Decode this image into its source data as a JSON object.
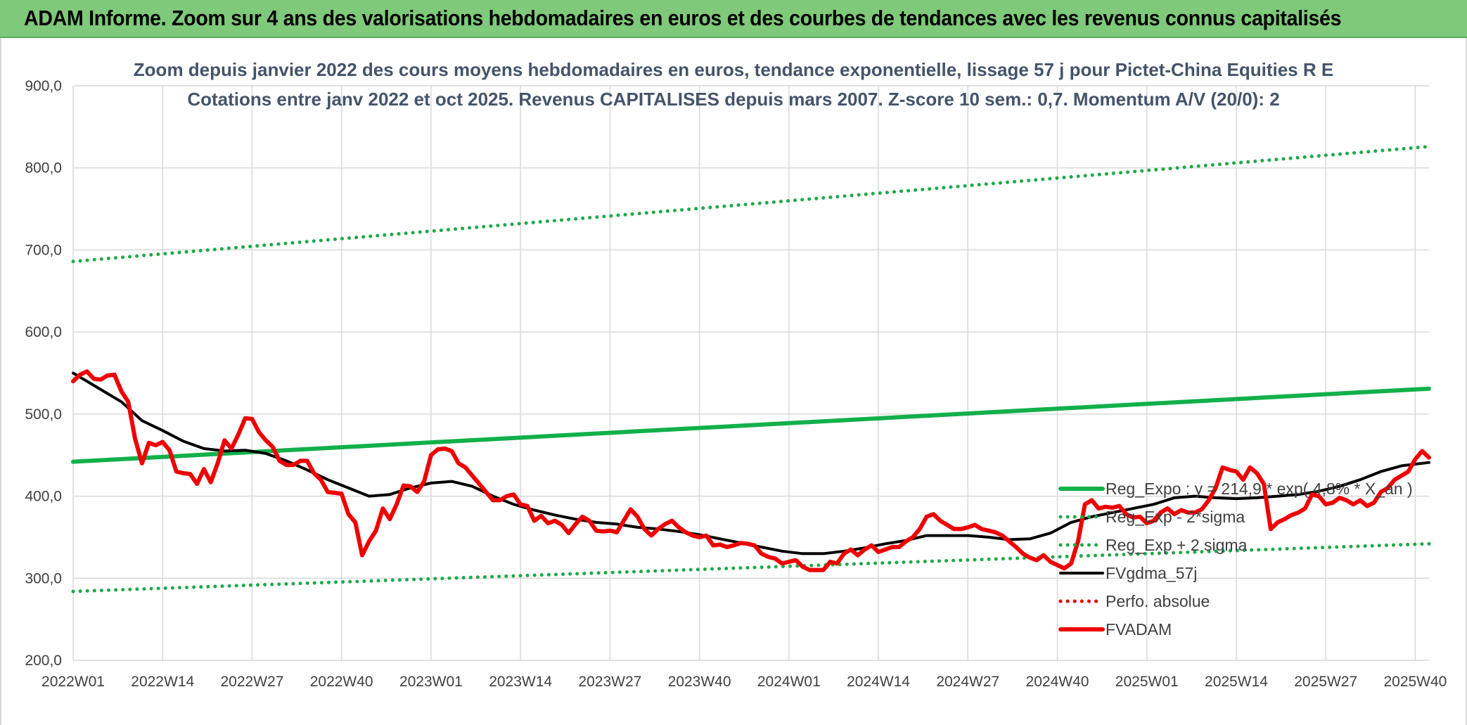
{
  "banner": {
    "title": "ADAM Informe. Zoom sur 4 ans des valorisations hebdomadaires en euros et des courbes de tendances avec les revenus connus capitalisés"
  },
  "colors": {
    "banner_bg": "#7fc97a",
    "grid": "#d9d9d9",
    "axis_text": "#404040",
    "title_text": "#44546a",
    "reg_exp": "#12b04a",
    "sigma": "#22a84a",
    "gdma": "#000000",
    "perfo": "#e00000",
    "fvadam": "#ee0000"
  },
  "chart_data": {
    "type": "line",
    "title_lines": [
      "Zoom depuis janvier 2022 des cours moyens hebdomadaires en euros, tendance exponentielle, lissage 57 j pour Pictet-China Equities R E",
      "Cotations entre janv 2022 et oct 2025. Revenus CAPITALISES depuis mars 2007. Z-score 10 sem.: 0,7. Momentum A/V (20/0): 2"
    ],
    "y_axis": {
      "min": 200,
      "max": 900,
      "step": 100,
      "tick_labels": [
        "200,0",
        "300,0",
        "400,0",
        "500,0",
        "600,0",
        "700,0",
        "800,0",
        "900,0"
      ]
    },
    "x_axis": {
      "week_count": 198,
      "tick_labels": [
        "2022W01",
        "2022W14",
        "2022W27",
        "2022W40",
        "2023W01",
        "2023W14",
        "2023W27",
        "2023W40",
        "2024W01",
        "2024W14",
        "2024W27",
        "2024W40",
        "2025W01",
        "2025W14",
        "2025W27",
        "2025W40"
      ],
      "tick_positions": [
        1,
        14,
        27,
        40,
        53,
        66,
        79,
        92,
        105,
        118,
        131,
        144,
        157,
        170,
        183,
        196
      ]
    },
    "grid": true,
    "legend_position": "right",
    "series": [
      {
        "name": "Reg_Expo : y = 214,9 * exp( 4,8% * X_an )",
        "style": "solid-thick",
        "color": "#12b04a",
        "x": [
          1,
          198
        ],
        "y": [
          442,
          531
        ]
      },
      {
        "name": "Reg_Exp - 2*sigma",
        "style": "dotted",
        "color": "#22a84a",
        "x": [
          1,
          198
        ],
        "y": [
          284,
          342
        ]
      },
      {
        "name": "Reg_Exp + 2 sigma",
        "style": "dotted",
        "color": "#22a84a",
        "x": [
          1,
          198
        ],
        "y": [
          686,
          826
        ]
      },
      {
        "name": "FVgdma_57j",
        "style": "solid",
        "color": "#000000",
        "x": [
          1,
          4,
          8,
          11,
          14,
          17,
          20,
          23,
          26,
          29,
          32,
          35,
          38,
          41,
          44,
          47,
          50,
          53,
          56,
          59,
          62,
          65,
          68,
          71,
          74,
          77,
          80,
          83,
          86,
          89,
          92,
          95,
          98,
          101,
          104,
          107,
          110,
          113,
          116,
          119,
          122,
          125,
          128,
          131,
          134,
          137,
          140,
          143,
          146,
          149,
          152,
          155,
          158,
          161,
          164,
          167,
          170,
          173,
          176,
          179,
          182,
          185,
          188,
          191,
          194,
          198
        ],
        "y": [
          550,
          535,
          515,
          492,
          480,
          467,
          458,
          455,
          456,
          452,
          443,
          432,
          420,
          410,
          400,
          402,
          410,
          416,
          418,
          412,
          400,
          390,
          383,
          377,
          372,
          368,
          366,
          362,
          360,
          357,
          353,
          348,
          343,
          338,
          333,
          330,
          330,
          333,
          337,
          342,
          346,
          352,
          352,
          352,
          350,
          347,
          348,
          355,
          368,
          375,
          380,
          385,
          390,
          398,
          400,
          398,
          397,
          398,
          400,
          402,
          406,
          412,
          420,
          430,
          437,
          441
        ]
      },
      {
        "name": "Perfo. absolue",
        "style": "dotted",
        "color": "#e00000",
        "x": [],
        "y": []
      },
      {
        "name": "FVADAM",
        "style": "solid-thick",
        "color": "#ee0000",
        "x": [
          1,
          2,
          3,
          4,
          5,
          6,
          7,
          8,
          9,
          10,
          11,
          12,
          13,
          14,
          15,
          16,
          17,
          18,
          19,
          20,
          21,
          22,
          23,
          24,
          25,
          26,
          27,
          28,
          29,
          30,
          31,
          32,
          33,
          34,
          35,
          36,
          37,
          38,
          39,
          40,
          41,
          42,
          43,
          44,
          45,
          46,
          47,
          48,
          49,
          50,
          51,
          52,
          53,
          54,
          55,
          56,
          57,
          58,
          59,
          60,
          61,
          62,
          63,
          64,
          65,
          66,
          67,
          68,
          69,
          70,
          71,
          72,
          73,
          74,
          75,
          76,
          77,
          78,
          79,
          80,
          81,
          82,
          83,
          84,
          85,
          86,
          87,
          88,
          89,
          90,
          91,
          92,
          93,
          94,
          95,
          96,
          97,
          98,
          99,
          100,
          101,
          102,
          103,
          104,
          105,
          106,
          107,
          108,
          109,
          110,
          111,
          112,
          113,
          114,
          115,
          116,
          117,
          118,
          119,
          120,
          121,
          122,
          123,
          124,
          125,
          126,
          127,
          128,
          129,
          130,
          131,
          132,
          133,
          134,
          135,
          136,
          137,
          138,
          139,
          140,
          141,
          142,
          143,
          144,
          145,
          146,
          147,
          148,
          149,
          150,
          151,
          152,
          153,
          154,
          155,
          156,
          157,
          158,
          159,
          160,
          161,
          162,
          163,
          164,
          165,
          166,
          167,
          168,
          169,
          170,
          171,
          172,
          173,
          174,
          175,
          176,
          177,
          178,
          179,
          180,
          181,
          182,
          183,
          184,
          185,
          186,
          187,
          188,
          189,
          190,
          191,
          192,
          193,
          194,
          195,
          196,
          197,
          198
        ],
        "y": [
          540,
          548,
          552,
          543,
          542,
          547,
          548,
          528,
          515,
          470,
          440,
          465,
          462,
          466,
          456,
          430,
          428,
          427,
          415,
          433,
          417,
          440,
          468,
          458,
          475,
          495,
          494,
          478,
          468,
          460,
          443,
          438,
          438,
          443,
          443,
          428,
          420,
          405,
          404,
          403,
          378,
          368,
          328,
          345,
          358,
          385,
          372,
          390,
          413,
          412,
          405,
          418,
          450,
          457,
          458,
          455,
          440,
          435,
          425,
          415,
          405,
          395,
          395,
          400,
          402,
          390,
          388,
          370,
          376,
          367,
          370,
          365,
          355,
          366,
          375,
          370,
          358,
          357,
          358,
          356,
          370,
          384,
          375,
          360,
          352,
          360,
          366,
          370,
          362,
          356,
          352,
          350,
          352,
          340,
          341,
          338,
          340,
          343,
          342,
          340,
          330,
          326,
          324,
          318,
          320,
          322,
          314,
          310,
          310,
          310,
          320,
          318,
          330,
          335,
          328,
          335,
          340,
          332,
          335,
          338,
          338,
          345,
          350,
          360,
          375,
          378,
          370,
          365,
          360,
          360,
          362,
          365,
          360,
          358,
          356,
          352,
          345,
          338,
          330,
          325,
          322,
          328,
          320,
          316,
          312,
          318,
          345,
          390,
          395,
          385,
          387,
          386,
          388,
          378,
          374,
          375,
          367,
          370,
          380,
          385,
          378,
          383,
          380,
          380,
          384,
          395,
          410,
          435,
          432,
          430,
          420,
          435,
          428,
          415,
          360,
          368,
          372,
          377,
          380,
          385,
          402,
          400,
          390,
          392,
          398,
          395,
          390,
          395,
          388,
          392,
          405,
          410,
          420,
          425,
          430,
          445,
          455,
          447
        ]
      }
    ]
  }
}
